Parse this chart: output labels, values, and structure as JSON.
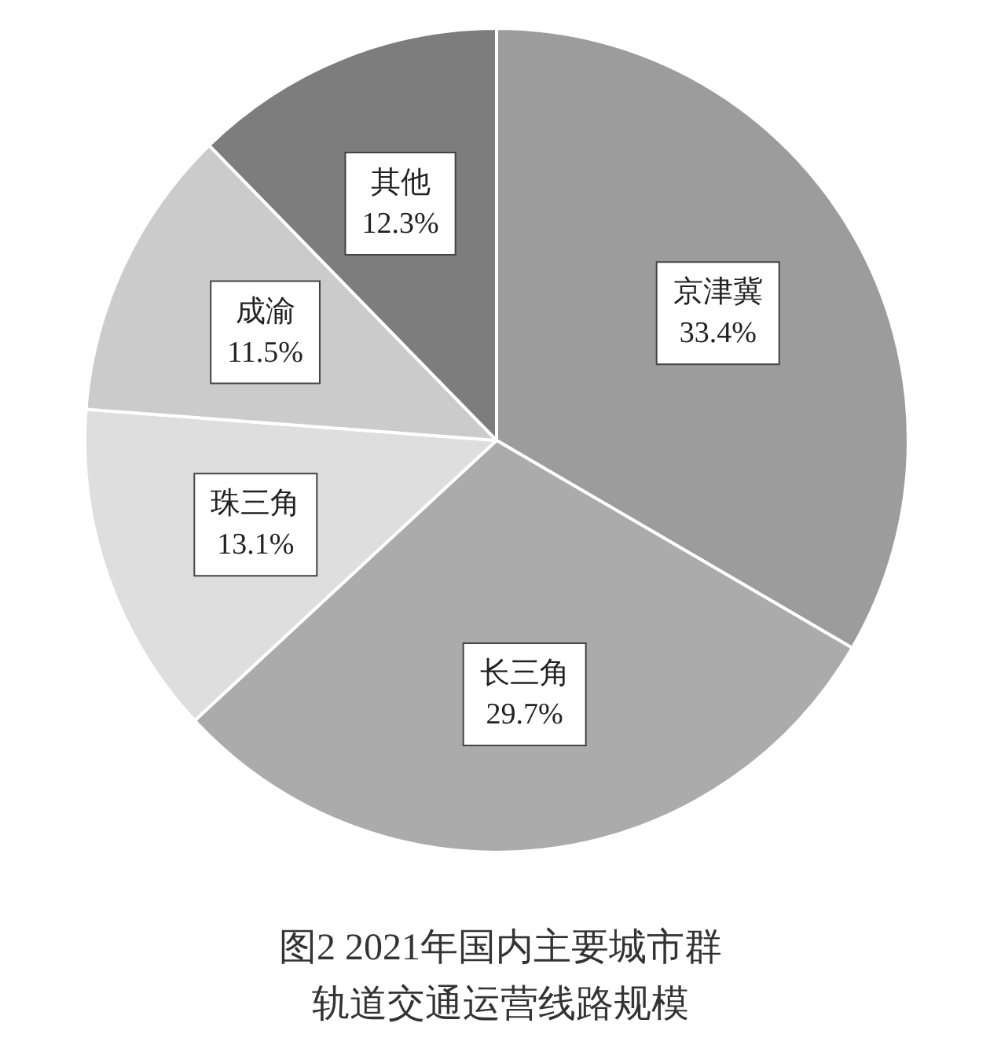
{
  "chart_data": {
    "type": "pie",
    "title": "图2 2021年国内主要城市群轨道交通运营线路规模",
    "categories": [
      "京津冀",
      "长三角",
      "珠三角",
      "成渝",
      "其他"
    ],
    "values": [
      33.4,
      29.7,
      13.1,
      11.5,
      12.3
    ],
    "value_labels": [
      "33.4%",
      "29.7%",
      "13.1%",
      "11.5%",
      "12.3%"
    ],
    "colors": [
      "#9c9c9c",
      "#ababab",
      "#dedede",
      "#cbcbcb",
      "#7d7d7d"
    ],
    "legend": false
  }
}
